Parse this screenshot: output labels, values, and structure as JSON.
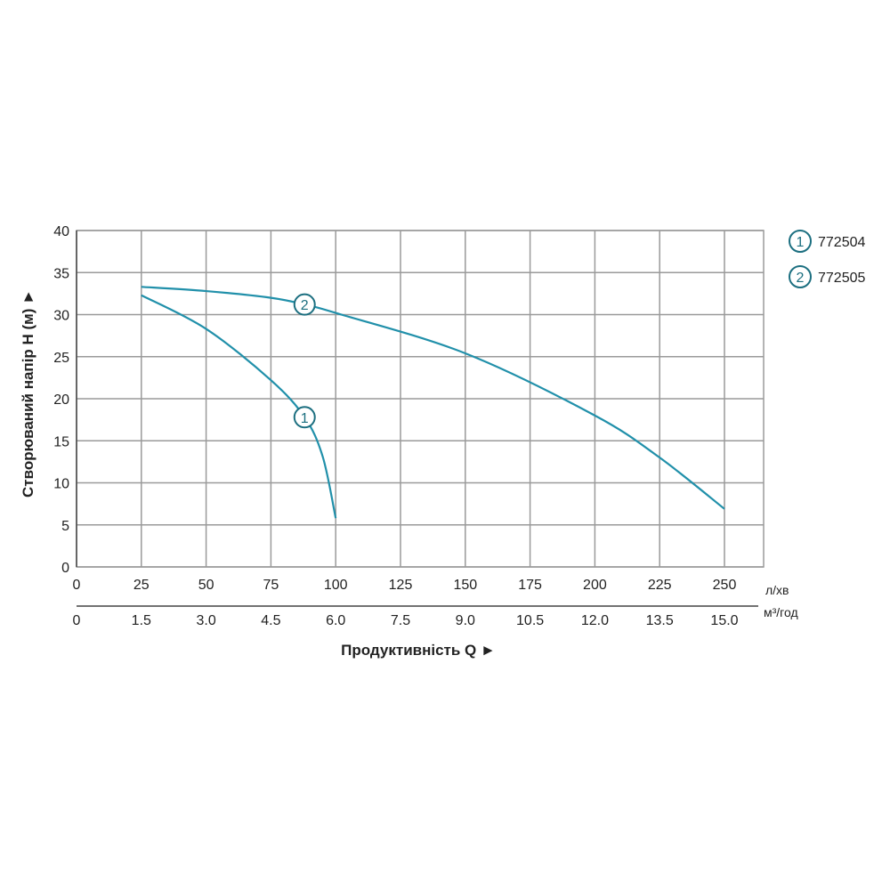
{
  "chart_data": {
    "type": "line",
    "ylabel": "Створюваний напір H (м) ►",
    "xlabel": "Продуктивність  Q ►",
    "ylim": [
      0,
      40
    ],
    "xlim": [
      0,
      265
    ],
    "yticks": [
      0,
      5,
      10,
      15,
      20,
      25,
      30,
      35,
      40
    ],
    "xticks_primary": {
      "unit": "л/хв",
      "values": [
        0,
        25,
        50,
        75,
        100,
        125,
        150,
        175,
        200,
        225,
        250
      ]
    },
    "xticks_secondary": {
      "unit": "м³/год",
      "labels": [
        "0",
        "1.5",
        "3.0",
        "4.5",
        "6.0",
        "7.5",
        "9.0",
        "10.5",
        "12.0",
        "13.5",
        "15.0"
      ]
    },
    "grid": true,
    "legend_placement": "top-right",
    "colors": {
      "curve": "#2190aa",
      "label": "#1c6f80",
      "grid": "#9a9a9a"
    },
    "series": [
      {
        "name": "772504",
        "marker": "1",
        "x": [
          25,
          50,
          75,
          88,
          95,
          100
        ],
        "y": [
          32.3,
          28.3,
          22.2,
          17.8,
          13.1,
          5.8
        ],
        "label_at": [
          88,
          17.8
        ]
      },
      {
        "name": "772505",
        "marker": "2",
        "x": [
          25,
          50,
          75,
          88,
          100,
          150,
          200,
          225,
          250
        ],
        "y": [
          33.3,
          32.8,
          32.0,
          31.2,
          30.2,
          25.4,
          18.0,
          13.0,
          6.9
        ],
        "label_at": [
          88,
          31.2
        ]
      }
    ]
  }
}
